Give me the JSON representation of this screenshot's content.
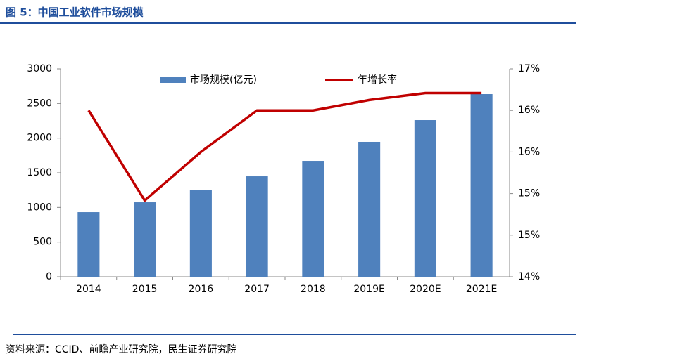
{
  "chart_data": {
    "type": "bar_line",
    "title": "图 5：中国工业软件市场规模",
    "source": "资料来源：CCID、前瞻产业研究院，民生证券研究院",
    "categories": [
      "2014",
      "2015",
      "2016",
      "2017",
      "2018",
      "2019E",
      "2020E",
      "2021E"
    ],
    "series": [
      {
        "name": "市场规模(亿元)",
        "type": "bar",
        "color": "#4f81bd",
        "values": [
          932,
          1074,
          1247,
          1449,
          1672,
          1946,
          2260,
          2635
        ]
      },
      {
        "name": "年增长率",
        "type": "line",
        "axis": "y2",
        "color": "#c00000",
        "values": [
          16.4,
          15.1,
          15.8,
          16.4,
          16.4,
          16.55,
          16.65,
          16.65
        ]
      }
    ],
    "ylim": [
      0,
      3000
    ],
    "yticks": [
      0,
      500,
      1000,
      1500,
      2000,
      2500,
      3000
    ],
    "y2lim": [
      14,
      17
    ],
    "y2ticks": [
      {
        "value": 14,
        "label": "14%"
      },
      {
        "value": 14.6,
        "label": "15%"
      },
      {
        "value": 15.2,
        "label": "15%"
      },
      {
        "value": 15.8,
        "label": "16%"
      },
      {
        "value": 16.4,
        "label": "16%"
      },
      {
        "value": 17,
        "label": "17%"
      }
    ],
    "grid": false
  }
}
